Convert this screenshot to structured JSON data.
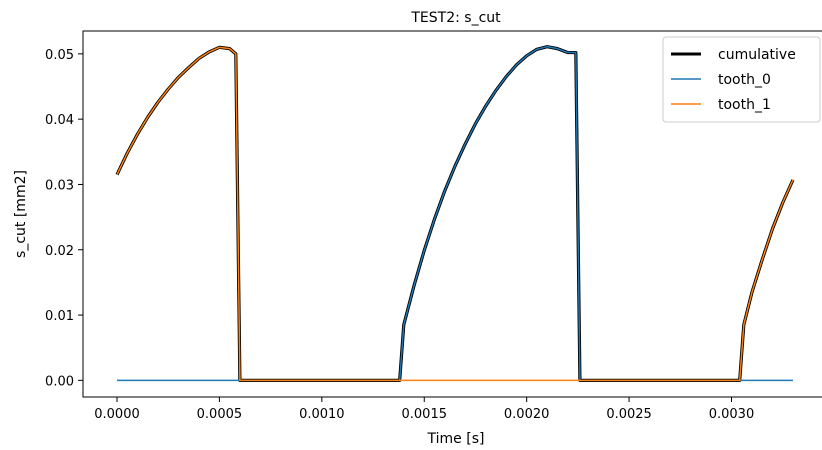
{
  "chart_data": {
    "type": "line",
    "title": "TEST2: s_cut",
    "xlabel": "Time [s]",
    "ylabel": "s_cut [mm2]",
    "xlim": [
      -0.000166,
      0.003476
    ],
    "ylim": [
      -0.00255,
      0.0535
    ],
    "xticks": [
      0.0,
      0.0005,
      0.001,
      0.0015,
      0.002,
      0.0025,
      0.003
    ],
    "xtick_labels": [
      "0.0000",
      "0.0005",
      "0.0010",
      "0.0015",
      "0.0020",
      "0.0025",
      "0.0030"
    ],
    "yticks": [
      0.0,
      0.01,
      0.02,
      0.03,
      0.04,
      0.05
    ],
    "ytick_labels": [
      "0.00",
      "0.01",
      "0.02",
      "0.03",
      "0.04",
      "0.05"
    ],
    "grid": false,
    "legend_position": "top-right",
    "series": [
      {
        "name": "cumulative",
        "color": "#000000",
        "x": [
          0.0,
          5e-05,
          0.0001,
          0.00015,
          0.0002,
          0.00025,
          0.0003,
          0.00035,
          0.0004,
          0.00045,
          0.0005,
          0.00055,
          0.00058,
          0.0006,
          0.0006,
          0.001,
          0.00138,
          0.0014,
          0.00145,
          0.0015,
          0.00155,
          0.0016,
          0.00165,
          0.0017,
          0.00175,
          0.0018,
          0.00185,
          0.0019,
          0.00195,
          0.002,
          0.00205,
          0.0021,
          0.00215,
          0.0022,
          0.00224,
          0.00226,
          0.00227,
          0.0023,
          0.0027,
          0.00304,
          0.00306,
          0.0031,
          0.00315,
          0.0032,
          0.00325,
          0.0033
        ],
        "y": [
          0.0315,
          0.0348,
          0.0377,
          0.0403,
          0.0426,
          0.0446,
          0.0464,
          0.0479,
          0.0493,
          0.0503,
          0.051,
          0.0508,
          0.05,
          0.0,
          0.0,
          0.0,
          0.0,
          0.0085,
          0.0145,
          0.0199,
          0.0247,
          0.029,
          0.0328,
          0.0362,
          0.0393,
          0.042,
          0.0444,
          0.0465,
          0.0483,
          0.0497,
          0.0507,
          0.0511,
          0.0508,
          0.0502,
          0.0502,
          0.0,
          0.0,
          0.0,
          0.0,
          0.0,
          0.0085,
          0.0135,
          0.0185,
          0.0232,
          0.0272,
          0.0307
        ]
      },
      {
        "name": "tooth_0",
        "color": "#1f77b4",
        "x": [
          0.0,
          0.00138,
          0.0014,
          0.00145,
          0.0015,
          0.00155,
          0.0016,
          0.00165,
          0.0017,
          0.00175,
          0.0018,
          0.00185,
          0.0019,
          0.00195,
          0.002,
          0.00205,
          0.0021,
          0.00215,
          0.0022,
          0.00224,
          0.00226,
          0.00227,
          0.0033
        ],
        "y": [
          0.0,
          0.0,
          0.0085,
          0.0145,
          0.0199,
          0.0247,
          0.029,
          0.0328,
          0.0362,
          0.0393,
          0.042,
          0.0444,
          0.0465,
          0.0483,
          0.0497,
          0.0507,
          0.0511,
          0.0508,
          0.0502,
          0.0502,
          0.0,
          0.0,
          0.0
        ]
      },
      {
        "name": "tooth_1",
        "color": "#ff7f0e",
        "x": [
          0.0,
          5e-05,
          0.0001,
          0.00015,
          0.0002,
          0.00025,
          0.0003,
          0.00035,
          0.0004,
          0.00045,
          0.0005,
          0.00055,
          0.00058,
          0.0006,
          0.0006,
          0.00304,
          0.00306,
          0.0031,
          0.00315,
          0.0032,
          0.00325,
          0.0033
        ],
        "y": [
          0.0315,
          0.0348,
          0.0377,
          0.0403,
          0.0426,
          0.0446,
          0.0464,
          0.0479,
          0.0493,
          0.0503,
          0.051,
          0.0508,
          0.05,
          0.0,
          0.0,
          0.0,
          0.0085,
          0.0135,
          0.0185,
          0.0232,
          0.0272,
          0.0307
        ]
      }
    ]
  }
}
